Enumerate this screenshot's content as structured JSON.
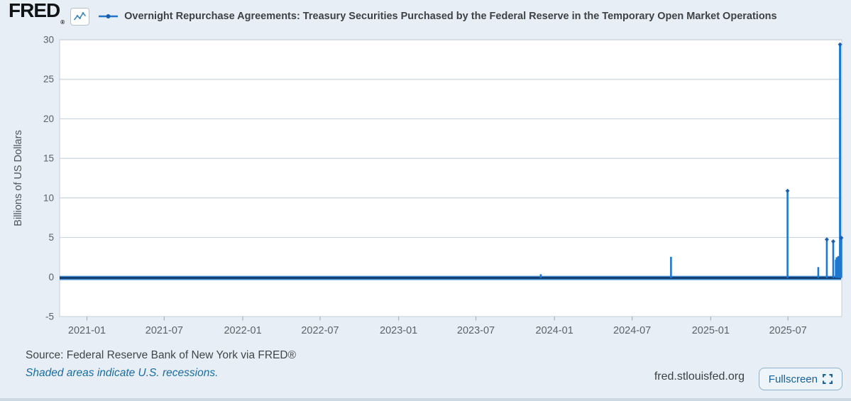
{
  "header": {
    "logo_text": "FRED",
    "logo_mark": "®",
    "title": "Overnight Repurchase Agreements: Treasury Securities Purchased by the Federal Reserve in the Temporary Open Market Operations"
  },
  "chart_data": {
    "type": "line",
    "title": "Overnight Repurchase Agreements: Treasury Securities Purchased by the Federal Reserve in the Temporary Open Market Operations",
    "ylabel": "Billions of US Dollars",
    "ylim": [
      -5,
      30
    ],
    "y_ticks": [
      30,
      25,
      20,
      15,
      10,
      5,
      0,
      -5
    ],
    "x_ticks": [
      "2021-01",
      "2021-07",
      "2022-01",
      "2022-07",
      "2023-01",
      "2023-07",
      "2024-01",
      "2024-07",
      "2025-01",
      "2025-07"
    ],
    "x_range": [
      "2020-10-29",
      "2025-11-04"
    ],
    "grid": true,
    "legend_position": "top",
    "baseline_value": 0,
    "baseline_note": "Series is approximately 0 on all days except spike dates",
    "spikes": [
      {
        "date": "2023-11-30",
        "value": 0.35
      },
      {
        "date": "2024-09-30",
        "value": 2.55
      },
      {
        "date": "2025-06-30",
        "value": 10.9
      },
      {
        "date": "2025-09-10",
        "value": 1.25
      },
      {
        "date": "2025-09-30",
        "value": 4.75
      },
      {
        "date": "2025-10-15",
        "value": 4.5
      },
      {
        "date": "2025-10-21",
        "value": 2.2
      },
      {
        "date": "2025-10-23",
        "value": 2.5
      },
      {
        "date": "2025-10-27",
        "value": 2.65
      },
      {
        "date": "2025-10-28",
        "value": 2.3
      },
      {
        "date": "2025-10-29",
        "value": 2.45
      },
      {
        "date": "2025-10-30",
        "value": 2.1
      },
      {
        "date": "2025-10-31",
        "value": 29.4
      },
      {
        "date": "2025-11-03",
        "value": 4.95
      }
    ],
    "marker_min_value": 4,
    "colors": {
      "line": "#1e78d0",
      "baseline": "#15406f",
      "marker": "#1b5fae",
      "grid": "#ccd4db",
      "plot_bg": "#ffffff",
      "page_bg": "#e7eef5",
      "accent_blue": "#2276c9",
      "tick_text": "#59636b"
    }
  },
  "footer": {
    "source": "Source: Federal Reserve Bank of New York via FRED®",
    "recession_note": "Shaded areas indicate U.S. recessions.",
    "site": "fred.stlouisfed.org",
    "fullscreen_label": "Fullscreen"
  }
}
